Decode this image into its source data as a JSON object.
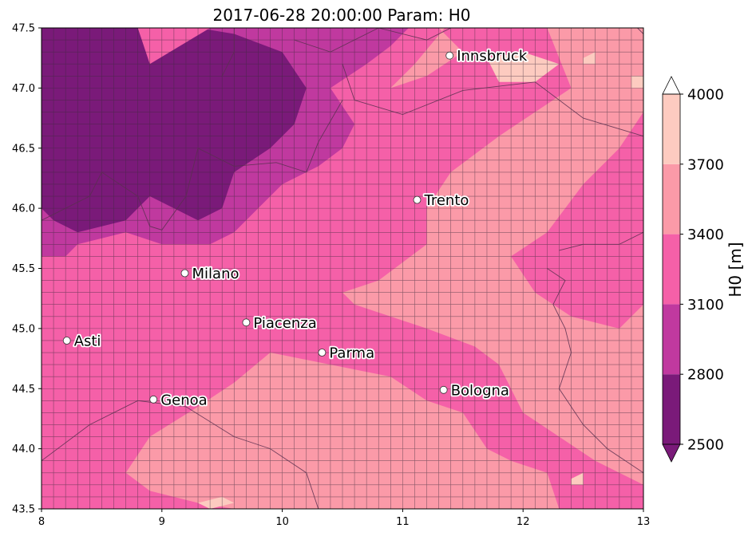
{
  "title": "2017-06-28 20:00:00 Param: H0",
  "colorbar_label": "H0  [m]",
  "colors": {
    "2500-2800": "#7a1a79",
    "2800-3100": "#c0399f",
    "3100-3400": "#f560a8",
    "3400-3700": "#fb9aa8",
    "3700-4000": "#fdcbc0",
    "above": "#ffffff",
    "below": "#7a1a79",
    "cell_edge": "#3a2a3a",
    "border": "#5a3050"
  },
  "chart_data": {
    "type": "heatmap",
    "title": "2017-06-28 20:00:00 Param: H0",
    "param": "H0",
    "unit": "m",
    "xlim": [
      8,
      13
    ],
    "ylim": [
      43.5,
      47.5
    ],
    "xticks": [
      "8",
      "9",
      "10",
      "11",
      "12",
      "13"
    ],
    "yticks": [
      "43.5",
      "44.0",
      "44.5",
      "45.0",
      "45.5",
      "46.0",
      "46.5",
      "47.0",
      "47.5"
    ],
    "xtick_values": [
      8,
      9,
      10,
      11,
      12,
      13
    ],
    "ytick_values": [
      43.5,
      44.0,
      44.5,
      45.0,
      45.5,
      46.0,
      46.5,
      47.0,
      47.5
    ],
    "colorbar_levels": [
      2500,
      2800,
      3100,
      3400,
      3700,
      4000
    ],
    "colorbar_ticks": [
      "2500",
      "2800",
      "3100",
      "3400",
      "3700",
      "4000"
    ],
    "colorbar_label": "H0  [m]",
    "colorbar_extend": "both",
    "regions": [
      {
        "level": 2950,
        "poly": [
          [
            8.0,
            45.6
          ],
          [
            8.2,
            45.6
          ],
          [
            8.3,
            45.7
          ],
          [
            8.7,
            45.8
          ],
          [
            9.0,
            45.7
          ],
          [
            9.4,
            45.7
          ],
          [
            9.6,
            45.8
          ],
          [
            9.8,
            46.0
          ],
          [
            10.0,
            46.2
          ],
          [
            10.3,
            46.35
          ],
          [
            10.5,
            46.5
          ],
          [
            10.6,
            46.7
          ],
          [
            10.4,
            47.0
          ],
          [
            10.7,
            47.2
          ],
          [
            10.9,
            47.35
          ],
          [
            11.05,
            47.5
          ],
          [
            8.0,
            47.5
          ]
        ]
      },
      {
        "level": 2650,
        "poly": [
          [
            8.0,
            46.0
          ],
          [
            8.1,
            45.9
          ],
          [
            8.3,
            45.8
          ],
          [
            8.7,
            45.9
          ],
          [
            8.9,
            46.1
          ],
          [
            9.1,
            46.0
          ],
          [
            9.3,
            45.9
          ],
          [
            9.5,
            46.0
          ],
          [
            9.6,
            46.3
          ],
          [
            9.9,
            46.5
          ],
          [
            10.1,
            46.7
          ],
          [
            10.2,
            47.0
          ],
          [
            10.0,
            47.3
          ],
          [
            9.6,
            47.45
          ],
          [
            9.3,
            47.5
          ],
          [
            8.0,
            47.5
          ]
        ]
      },
      {
        "level": 3250,
        "poly": [
          [
            8.9,
            47.2
          ],
          [
            9.4,
            47.5
          ],
          [
            8.8,
            47.5
          ]
        ]
      },
      {
        "level": 3550,
        "poly": [
          [
            10.9,
            47.0
          ],
          [
            11.2,
            47.1
          ],
          [
            11.5,
            47.3
          ],
          [
            11.3,
            47.5
          ],
          [
            12.2,
            47.5
          ],
          [
            12.4,
            47.0
          ],
          [
            12.1,
            46.8
          ],
          [
            11.8,
            46.6
          ],
          [
            11.4,
            46.3
          ],
          [
            11.2,
            46.0
          ],
          [
            11.2,
            45.7
          ],
          [
            10.8,
            45.4
          ],
          [
            10.5,
            45.3
          ],
          [
            10.6,
            45.2
          ],
          [
            11.2,
            45.0
          ],
          [
            11.6,
            44.85
          ],
          [
            11.8,
            44.7
          ],
          [
            11.9,
            44.5
          ],
          [
            12.0,
            44.3
          ],
          [
            12.3,
            44.1
          ],
          [
            12.6,
            43.9
          ],
          [
            12.8,
            43.8
          ],
          [
            13.0,
            43.7
          ],
          [
            13.0,
            45.2
          ],
          [
            12.8,
            45.0
          ],
          [
            12.4,
            45.1
          ],
          [
            12.1,
            45.3
          ],
          [
            11.9,
            45.6
          ],
          [
            12.2,
            45.8
          ],
          [
            12.5,
            46.2
          ],
          [
            12.8,
            46.5
          ],
          [
            13.0,
            46.8
          ],
          [
            13.0,
            47.5
          ],
          [
            11.35,
            47.5
          ],
          [
            11.1,
            47.2
          ]
        ]
      },
      {
        "level": 3550,
        "poly": [
          [
            9.9,
            44.8
          ],
          [
            10.4,
            44.7
          ],
          [
            10.9,
            44.6
          ],
          [
            11.2,
            44.4
          ],
          [
            11.5,
            44.3
          ],
          [
            11.7,
            44.0
          ],
          [
            11.9,
            43.9
          ],
          [
            12.2,
            43.8
          ],
          [
            12.3,
            43.5
          ],
          [
            9.6,
            43.5
          ],
          [
            9.3,
            43.55
          ],
          [
            8.9,
            43.65
          ],
          [
            8.7,
            43.8
          ],
          [
            8.9,
            44.1
          ],
          [
            9.3,
            44.35
          ],
          [
            9.6,
            44.55
          ]
        ]
      },
      {
        "level": 3550,
        "poly": [
          [
            10.0,
            44.3
          ],
          [
            10.3,
            44.2
          ],
          [
            10.5,
            44.35
          ],
          [
            10.2,
            44.45
          ]
        ]
      },
      {
        "level": 3850,
        "poly": [
          [
            11.7,
            47.25
          ],
          [
            12.0,
            47.3
          ],
          [
            12.3,
            47.2
          ],
          [
            12.1,
            47.05
          ],
          [
            11.8,
            47.05
          ]
        ]
      },
      {
        "level": 3850,
        "poly": [
          [
            12.5,
            47.25
          ],
          [
            12.6,
            47.3
          ],
          [
            12.6,
            47.2
          ],
          [
            12.5,
            47.2
          ]
        ]
      },
      {
        "level": 3850,
        "poly": [
          [
            12.9,
            47.1
          ],
          [
            13.0,
            47.1
          ],
          [
            13.0,
            47.0
          ],
          [
            12.9,
            47.0
          ]
        ]
      },
      {
        "level": 3850,
        "poly": [
          [
            9.3,
            43.55
          ],
          [
            9.5,
            43.6
          ],
          [
            9.6,
            43.55
          ],
          [
            9.4,
            43.5
          ]
        ]
      },
      {
        "level": 3850,
        "poly": [
          [
            12.4,
            43.75
          ],
          [
            12.5,
            43.8
          ],
          [
            12.5,
            43.7
          ],
          [
            12.4,
            43.7
          ]
        ]
      }
    ],
    "cities": [
      {
        "name": "Innsbruck",
        "lon": 11.39,
        "lat": 47.27
      },
      {
        "name": "Trento",
        "lon": 11.12,
        "lat": 46.07
      },
      {
        "name": "Milano",
        "lon": 9.19,
        "lat": 45.46
      },
      {
        "name": "Piacenza",
        "lon": 9.7,
        "lat": 45.05
      },
      {
        "name": "Asti",
        "lon": 8.21,
        "lat": 44.9
      },
      {
        "name": "Parma",
        "lon": 10.33,
        "lat": 44.8
      },
      {
        "name": "Bologna",
        "lon": 11.34,
        "lat": 44.49
      },
      {
        "name": "Genoa",
        "lon": 8.93,
        "lat": 44.41
      }
    ],
    "borders": [
      [
        [
          8.0,
          47.55
        ],
        [
          8.6,
          47.7
        ],
        [
          9.0,
          47.65
        ],
        [
          9.5,
          47.55
        ],
        [
          9.7,
          47.5
        ]
      ],
      [
        [
          9.6,
          47.55
        ],
        [
          9.6,
          47.3
        ],
        [
          9.5,
          47.1
        ]
      ],
      [
        [
          10.1,
          47.4
        ],
        [
          10.4,
          47.3
        ],
        [
          10.8,
          47.5
        ],
        [
          11.2,
          47.4
        ],
        [
          11.6,
          47.6
        ],
        [
          12.2,
          47.7
        ],
        [
          12.8,
          47.65
        ],
        [
          13.0,
          47.45
        ]
      ],
      [
        [
          10.5,
          47.2
        ],
        [
          10.6,
          46.9
        ],
        [
          11.0,
          46.78
        ],
        [
          11.5,
          46.98
        ],
        [
          12.1,
          47.05
        ],
        [
          12.5,
          46.75
        ],
        [
          13.0,
          46.6
        ]
      ],
      [
        [
          8.0,
          45.9
        ],
        [
          8.4,
          46.1
        ],
        [
          8.5,
          46.3
        ],
        [
          8.8,
          46.1
        ],
        [
          8.9,
          45.85
        ],
        [
          9.0,
          45.82
        ],
        [
          9.2,
          46.1
        ],
        [
          9.3,
          46.5
        ],
        [
          9.6,
          46.35
        ],
        [
          9.95,
          46.38
        ],
        [
          10.2,
          46.3
        ],
        [
          10.3,
          46.55
        ],
        [
          10.5,
          46.9
        ]
      ],
      [
        [
          12.2,
          45.5
        ],
        [
          12.35,
          45.4
        ],
        [
          12.25,
          45.2
        ],
        [
          12.35,
          45.0
        ],
        [
          12.4,
          44.8
        ],
        [
          12.3,
          44.5
        ],
        [
          12.5,
          44.2
        ],
        [
          12.7,
          44.0
        ],
        [
          13.0,
          43.8
        ]
      ],
      [
        [
          8.0,
          43.9
        ],
        [
          8.4,
          44.2
        ],
        [
          8.8,
          44.4
        ],
        [
          9.2,
          44.35
        ],
        [
          9.6,
          44.1
        ],
        [
          9.9,
          44.0
        ],
        [
          10.2,
          43.8
        ],
        [
          10.3,
          43.5
        ]
      ],
      [
        [
          12.3,
          45.65
        ],
        [
          12.5,
          45.7
        ],
        [
          12.8,
          45.7
        ],
        [
          13.0,
          45.8
        ]
      ]
    ]
  }
}
